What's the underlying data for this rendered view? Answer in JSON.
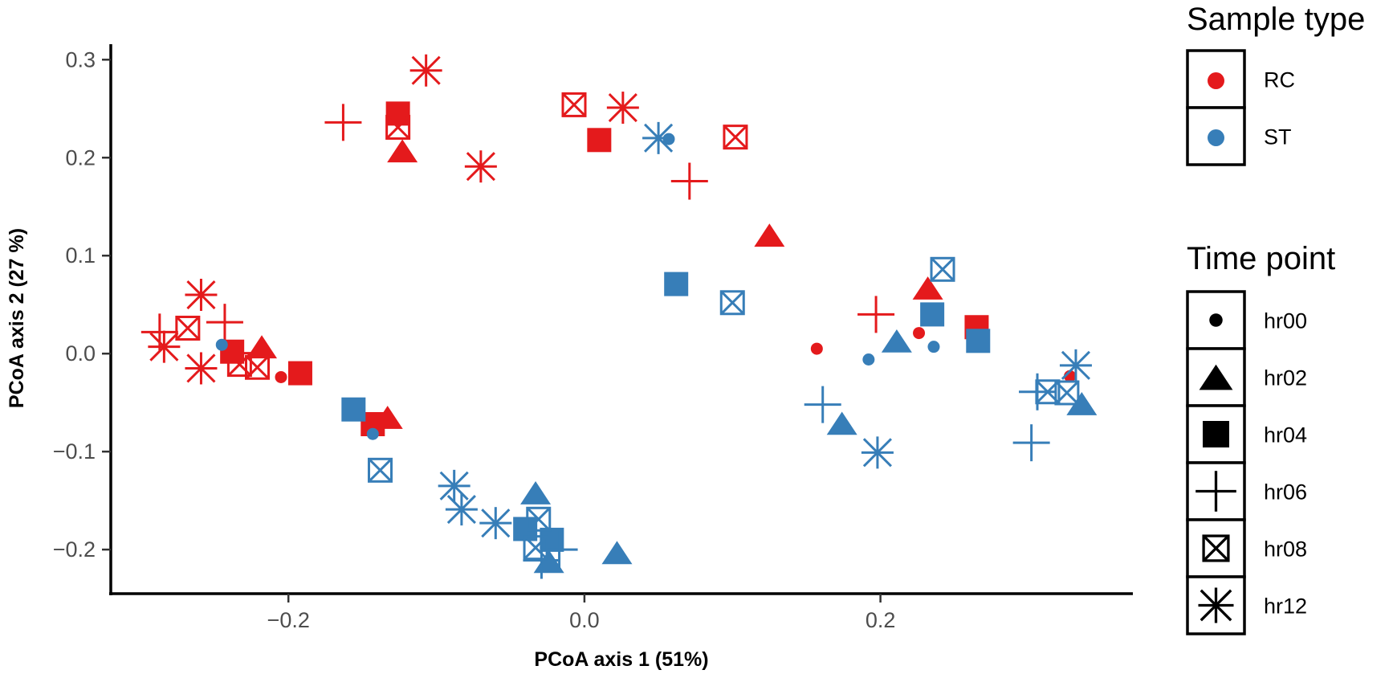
{
  "chart_data": {
    "type": "scatter",
    "title": "",
    "xlabel": "PCoA axis 1 (51%)",
    "ylabel": "PCoA axis 2 (27 %)",
    "xlim": [
      -0.32,
      0.37
    ],
    "ylim": [
      -0.245,
      0.315
    ],
    "xticks": [
      -0.2,
      0.0,
      0.2
    ],
    "xtick_labels": [
      "−0.2",
      "0.0",
      "0.2"
    ],
    "yticks": [
      -0.2,
      -0.1,
      0.0,
      0.1,
      0.2,
      0.3
    ],
    "ytick_labels": [
      "−0.2",
      "−0.1",
      "0.0",
      "0.1",
      "0.2",
      "0.3"
    ],
    "grid": false,
    "legends": [
      {
        "title": "Sample type",
        "kind": "color",
        "entries": [
          {
            "label": "RC",
            "color": "#E41A1C"
          },
          {
            "label": "ST",
            "color": "#377EB8"
          }
        ]
      },
      {
        "title": "Time point",
        "kind": "shape",
        "entries": [
          {
            "label": "hr00",
            "shape": "dot"
          },
          {
            "label": "hr02",
            "shape": "triangle"
          },
          {
            "label": "hr04",
            "shape": "square"
          },
          {
            "label": "hr06",
            "shape": "plus"
          },
          {
            "label": "hr08",
            "shape": "boxx"
          },
          {
            "label": "hr12",
            "shape": "star"
          }
        ]
      }
    ],
    "series": [
      {
        "name": "RC",
        "color": "#E41A1C",
        "points": [
          {
            "x": -0.205,
            "y": -0.024,
            "shape": "hr00"
          },
          {
            "x": 0.157,
            "y": 0.005,
            "shape": "hr00"
          },
          {
            "x": 0.226,
            "y": 0.021,
            "shape": "hr00"
          },
          {
            "x": 0.328,
            "y": -0.023,
            "shape": "hr00"
          },
          {
            "x": -0.123,
            "y": 0.204,
            "shape": "hr02"
          },
          {
            "x": -0.218,
            "y": 0.004,
            "shape": "hr02"
          },
          {
            "x": -0.133,
            "y": -0.068,
            "shape": "hr02"
          },
          {
            "x": 0.125,
            "y": 0.118,
            "shape": "hr02"
          },
          {
            "x": 0.232,
            "y": 0.064,
            "shape": "hr02"
          },
          {
            "x": -0.126,
            "y": 0.245,
            "shape": "hr04"
          },
          {
            "x": 0.01,
            "y": 0.218,
            "shape": "hr04"
          },
          {
            "x": -0.238,
            "y": 0.002,
            "shape": "hr04"
          },
          {
            "x": -0.192,
            "y": -0.02,
            "shape": "hr04"
          },
          {
            "x": -0.143,
            "y": -0.072,
            "shape": "hr04"
          },
          {
            "x": 0.265,
            "y": 0.027,
            "shape": "hr04"
          },
          {
            "x": -0.163,
            "y": 0.236,
            "shape": "hr06"
          },
          {
            "x": 0.071,
            "y": 0.176,
            "shape": "hr06"
          },
          {
            "x": -0.287,
            "y": 0.022,
            "shape": "hr06"
          },
          {
            "x": -0.243,
            "y": 0.032,
            "shape": "hr06"
          },
          {
            "x": 0.197,
            "y": 0.04,
            "shape": "hr06"
          },
          {
            "x": -0.126,
            "y": 0.231,
            "shape": "hr08"
          },
          {
            "x": -0.007,
            "y": 0.254,
            "shape": "hr08"
          },
          {
            "x": 0.102,
            "y": 0.221,
            "shape": "hr08"
          },
          {
            "x": -0.268,
            "y": 0.026,
            "shape": "hr08"
          },
          {
            "x": -0.233,
            "y": -0.011,
            "shape": "hr08"
          },
          {
            "x": -0.221,
            "y": -0.014,
            "shape": "hr08"
          },
          {
            "x": -0.107,
            "y": 0.289,
            "shape": "hr12"
          },
          {
            "x": 0.026,
            "y": 0.251,
            "shape": "hr12"
          },
          {
            "x": -0.07,
            "y": 0.191,
            "shape": "hr12"
          },
          {
            "x": -0.259,
            "y": 0.06,
            "shape": "hr12"
          },
          {
            "x": -0.284,
            "y": 0.007,
            "shape": "hr12"
          },
          {
            "x": -0.259,
            "y": -0.015,
            "shape": "hr12"
          }
        ]
      },
      {
        "name": "ST",
        "color": "#377EB8",
        "points": [
          {
            "x": -0.245,
            "y": 0.009,
            "shape": "hr00"
          },
          {
            "x": -0.143,
            "y": -0.082,
            "shape": "hr00"
          },
          {
            "x": 0.057,
            "y": 0.219,
            "shape": "hr00"
          },
          {
            "x": 0.192,
            "y": -0.006,
            "shape": "hr00"
          },
          {
            "x": 0.236,
            "y": 0.007,
            "shape": "hr00"
          },
          {
            "x": -0.033,
            "y": -0.145,
            "shape": "hr02"
          },
          {
            "x": -0.024,
            "y": -0.215,
            "shape": "hr02"
          },
          {
            "x": 0.022,
            "y": -0.206,
            "shape": "hr02"
          },
          {
            "x": 0.174,
            "y": -0.074,
            "shape": "hr02"
          },
          {
            "x": 0.211,
            "y": 0.01,
            "shape": "hr02"
          },
          {
            "x": 0.336,
            "y": -0.054,
            "shape": "hr02"
          },
          {
            "x": -0.156,
            "y": -0.057,
            "shape": "hr04"
          },
          {
            "x": -0.04,
            "y": -0.179,
            "shape": "hr04"
          },
          {
            "x": -0.022,
            "y": -0.19,
            "shape": "hr04"
          },
          {
            "x": 0.062,
            "y": 0.071,
            "shape": "hr04"
          },
          {
            "x": 0.235,
            "y": 0.04,
            "shape": "hr04"
          },
          {
            "x": 0.266,
            "y": 0.013,
            "shape": "hr04"
          },
          {
            "x": -0.017,
            "y": -0.2,
            "shape": "hr06"
          },
          {
            "x": -0.029,
            "y": -0.211,
            "shape": "hr06"
          },
          {
            "x": 0.161,
            "y": -0.052,
            "shape": "hr06"
          },
          {
            "x": 0.306,
            "y": -0.039,
            "shape": "hr06"
          },
          {
            "x": 0.302,
            "y": -0.091,
            "shape": "hr06"
          },
          {
            "x": -0.138,
            "y": -0.119,
            "shape": "hr08"
          },
          {
            "x": -0.033,
            "y": -0.198,
            "shape": "hr08"
          },
          {
            "x": -0.031,
            "y": -0.169,
            "shape": "hr08"
          },
          {
            "x": 0.1,
            "y": 0.052,
            "shape": "hr08"
          },
          {
            "x": 0.242,
            "y": 0.086,
            "shape": "hr08"
          },
          {
            "x": 0.313,
            "y": -0.039,
            "shape": "hr08"
          },
          {
            "x": 0.326,
            "y": -0.04,
            "shape": "hr08"
          },
          {
            "x": -0.088,
            "y": -0.135,
            "shape": "hr12"
          },
          {
            "x": -0.083,
            "y": -0.159,
            "shape": "hr12"
          },
          {
            "x": -0.06,
            "y": -0.173,
            "shape": "hr12"
          },
          {
            "x": 0.05,
            "y": 0.22,
            "shape": "hr12"
          },
          {
            "x": 0.198,
            "y": -0.101,
            "shape": "hr12"
          },
          {
            "x": 0.332,
            "y": -0.012,
            "shape": "hr12"
          }
        ]
      }
    ]
  }
}
